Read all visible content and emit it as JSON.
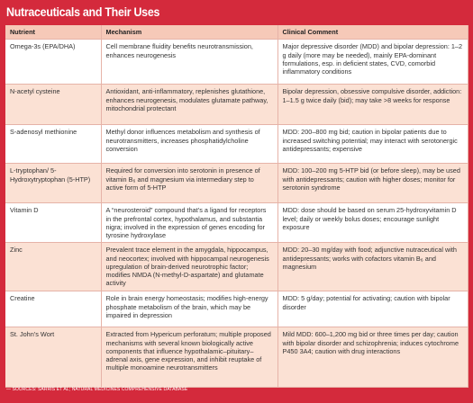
{
  "header": {
    "title": "Nutraceuticals and Their Uses"
  },
  "table": {
    "columns": [
      "Nutrient",
      "Mechanism",
      "Clinical Comment"
    ],
    "rows": [
      [
        "Omega-3s (EPA/DHA)",
        "Cell membrane fluidity benefits neurotransmission, enhances neurogenesis",
        "Major depressive disorder (MDD) and bipolar depression: 1–2 g daily (more may be needed), mainly EPA-dominant formulations, esp. in deficient states, CVD, comorbid inflammatory conditions"
      ],
      [
        "N-acetyl cysteine",
        "Antioxidant, anti-inflammatory, replenishes glutathione, enhances neurogenesis, modulates glutamate pathway, mitochondrial protectant",
        "Bipolar depression, obsessive compulsive disorder, addiction: 1–1.5 g twice daily (bid); may take >8 weeks for response"
      ],
      [
        "S-adenosyl methionine",
        "Methyl donor influences metabolism and synthesis of neurotransmitters, increases phosphatidylcholine conversion",
        "MDD: 200–800 mg bid; caution in bipolar patients due to increased switching potential; may interact with serotonergic antidepressants; expensive"
      ],
      [
        "L-tryptophan/ 5-Hydroxytryptophan (5-HTP)",
        "Required for conversion into serotonin in presence of vitamin B₆ and magnesium via intermediary step to active form of 5-HTP",
        "MDD: 100–200 mg 5-HTP bid (or before sleep), may be used with antidepressants; caution with higher doses; monitor for serotonin syndrome"
      ],
      [
        "Vitamin D",
        "A “neurosteroid” compound that’s a ligand for receptors in the prefrontal cortex, hypothalamus, and substantia nigra; involved in the expression of genes encoding for tyrosine hydroxylase",
        "MDD: dose should be based on serum 25-hydroxyvitamin D level; daily or weekly bolus doses; encourage sunlight exposure"
      ],
      [
        "Zinc",
        "Prevalent trace element in the amygdala, hippocampus, and neocortex; involved with hippocampal neurogenesis upregulation of brain-derived neurotrophic factor; modifies NMDA (N-methyl-D-aspartate) and glutamate activity",
        "MDD: 20–30 mg/day with food; adjunctive nutraceutical with antidepressants; works with cofactors vitamin B₆ and magnesium"
      ],
      [
        "Creatine",
        "Role in brain energy homeostasis; modifies high-energy phosphate metabolism of the brain, which may be impaired in depression",
        "MDD: 5 g/day; potential for activating; caution with bipolar disorder"
      ],
      [
        "St. John’s Wort",
        "Extracted from Hypericum perforatum; multiple proposed mechanisms with several known biologically active components that influence hypothalamic–pituitary–adrenal axis, gene expression, and inhibit reuptake of multiple monoamine neurotransmitters",
        "Mild MDD: 600–1,200 mg bid or three times per day; caution with bipolar disorder and schizophrenia; induces cytochrome P450 3A4; caution with drug interactions"
      ]
    ]
  },
  "footer": {
    "source": "— SOURCES: SARRIS ET AL; NATURAL MEDICINES COMPREHENSIVE DATABASE"
  }
}
